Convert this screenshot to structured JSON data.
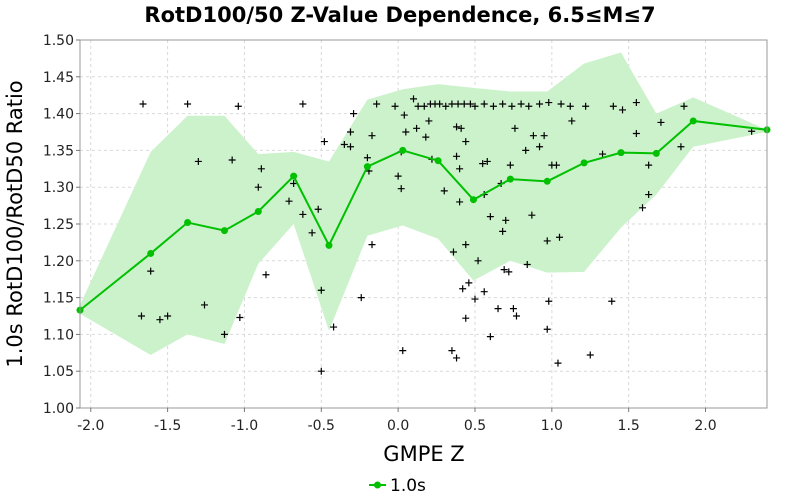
{
  "chart_data": {
    "type": "scatter",
    "title": "RotD100/50 Z-Value Dependence, 6.5≤M≤7",
    "xlabel": "GMPE Z",
    "ylabel": "1.0s RotD100/RotD50 Ratio",
    "xlim": [
      -2.07,
      2.4
    ],
    "ylim": [
      1.0,
      1.5
    ],
    "x_ticks": [
      "-2.0",
      "-1.5",
      "-1.0",
      "-0.5",
      "0.0",
      "0.5",
      "1.0",
      "1.5",
      "2.0"
    ],
    "x_tick_values": [
      -2.0,
      -1.5,
      -1.0,
      -0.5,
      0.0,
      0.5,
      1.0,
      1.5,
      2.0
    ],
    "y_ticks": [
      "1.00",
      "1.05",
      "1.10",
      "1.15",
      "1.20",
      "1.25",
      "1.30",
      "1.35",
      "1.40",
      "1.45",
      "1.50"
    ],
    "y_tick_values": [
      1.0,
      1.05,
      1.1,
      1.15,
      1.2,
      1.25,
      1.3,
      1.35,
      1.4,
      1.45,
      1.5
    ],
    "grid": true,
    "legend": {
      "position": "bottom-center",
      "entries": [
        "1.0s"
      ]
    },
    "colors": {
      "line": "#00c000",
      "band": "#ccf2cc",
      "scatter": "#000000",
      "grid": "#d9d9d9"
    },
    "series": [
      {
        "name": "1.0s",
        "type": "line",
        "x": [
          -2.07,
          -1.61,
          -1.37,
          -1.13,
          -0.91,
          -0.68,
          -0.45,
          -0.2,
          0.03,
          0.26,
          0.49,
          0.73,
          0.97,
          1.21,
          1.45,
          1.68,
          1.92,
          2.4
        ],
        "y": [
          1.133,
          1.21,
          1.252,
          1.241,
          1.267,
          1.315,
          1.221,
          1.328,
          1.35,
          1.336,
          1.283,
          1.311,
          1.308,
          1.333,
          1.347,
          1.346,
          1.39,
          1.378
        ]
      }
    ],
    "band": {
      "x": [
        -2.07,
        -1.61,
        -1.37,
        -1.13,
        -0.91,
        -0.68,
        -0.45,
        -0.2,
        0.03,
        0.26,
        0.49,
        0.73,
        0.97,
        1.21,
        1.45,
        1.68,
        1.92,
        2.4
      ],
      "upper": [
        1.14,
        1.348,
        1.397,
        1.397,
        1.345,
        1.348,
        1.335,
        1.419,
        1.433,
        1.44,
        1.435,
        1.43,
        1.43,
        1.468,
        1.483,
        1.4,
        1.422,
        1.378
      ],
      "lower": [
        1.128,
        1.072,
        1.1,
        1.087,
        1.196,
        1.25,
        1.105,
        1.234,
        1.248,
        1.23,
        1.173,
        1.2,
        1.184,
        1.185,
        1.245,
        1.29,
        1.355,
        1.375
      ]
    },
    "scatter_points": [
      [
        -1.66,
        1.413
      ],
      [
        -1.37,
        1.413
      ],
      [
        -1.04,
        1.41
      ],
      [
        -0.62,
        1.413
      ],
      [
        -1.3,
        1.335
      ],
      [
        -1.08,
        1.337
      ],
      [
        -0.89,
        1.325
      ],
      [
        -0.91,
        1.3
      ],
      [
        -0.71,
        1.281
      ],
      [
        -0.68,
        1.305
      ],
      [
        -0.62,
        1.263
      ],
      [
        -0.52,
        1.27
      ],
      [
        -0.56,
        1.238
      ],
      [
        -1.61,
        1.186
      ],
      [
        -0.86,
        1.181
      ],
      [
        -1.67,
        1.125
      ],
      [
        -1.55,
        1.12
      ],
      [
        -1.5,
        1.125
      ],
      [
        -1.26,
        1.14
      ],
      [
        -1.13,
        1.1
      ],
      [
        -1.03,
        1.123
      ],
      [
        -0.5,
        1.16
      ],
      [
        -0.42,
        1.11
      ],
      [
        -0.5,
        1.05
      ],
      [
        -0.48,
        1.362
      ],
      [
        -0.35,
        1.358
      ],
      [
        -0.31,
        1.355
      ],
      [
        -0.31,
        1.375
      ],
      [
        -0.29,
        1.4
      ],
      [
        -0.2,
        1.34
      ],
      [
        -0.17,
        1.37
      ],
      [
        -0.14,
        1.413
      ],
      [
        -0.19,
        1.322
      ],
      [
        -0.24,
        1.15
      ],
      [
        -0.17,
        1.222
      ],
      [
        -0.02,
        1.41
      ],
      [
        0.04,
        1.398
      ],
      [
        0.1,
        1.42
      ],
      [
        0.13,
        1.41
      ],
      [
        0.17,
        1.41
      ],
      [
        0.21,
        1.413
      ],
      [
        0.24,
        1.413
      ],
      [
        0.27,
        1.413
      ],
      [
        0.31,
        1.41
      ],
      [
        0.35,
        1.413
      ],
      [
        0.39,
        1.413
      ],
      [
        0.43,
        1.413
      ],
      [
        0.47,
        1.413
      ],
      [
        0.5,
        1.41
      ],
      [
        0.56,
        1.413
      ],
      [
        0.62,
        1.41
      ],
      [
        0.68,
        1.413
      ],
      [
        0.74,
        1.41
      ],
      [
        0.8,
        1.413
      ],
      [
        0.85,
        1.41
      ],
      [
        0.92,
        1.413
      ],
      [
        0.98,
        1.415
      ],
      [
        1.06,
        1.413
      ],
      [
        1.12,
        1.41
      ],
      [
        1.22,
        1.41
      ],
      [
        1.4,
        1.41
      ],
      [
        1.46,
        1.405
      ],
      [
        1.55,
        1.415
      ],
      [
        1.86,
        1.41
      ],
      [
        0.05,
        1.375
      ],
      [
        0.12,
        1.38
      ],
      [
        0.18,
        1.368
      ],
      [
        0.2,
        1.39
      ],
      [
        0.38,
        1.382
      ],
      [
        0.41,
        1.38
      ],
      [
        0.44,
        1.362
      ],
      [
        0.38,
        1.342
      ],
      [
        0.22,
        1.338
      ],
      [
        0.02,
        1.348
      ],
      [
        0.4,
        1.325
      ],
      [
        0.55,
        1.332
      ],
      [
        0.58,
        1.335
      ],
      [
        0.67,
        1.305
      ],
      [
        0.73,
        1.33
      ],
      [
        0.76,
        1.38
      ],
      [
        0.83,
        1.35
      ],
      [
        0.88,
        1.37
      ],
      [
        0.92,
        1.355
      ],
      [
        0.95,
        1.37
      ],
      [
        1.13,
        1.39
      ],
      [
        1.33,
        1.345
      ],
      [
        1.55,
        1.373
      ],
      [
        1.63,
        1.33
      ],
      [
        1.71,
        1.388
      ],
      [
        1.84,
        1.355
      ],
      [
        1.0,
        1.33
      ],
      [
        1.03,
        1.33
      ],
      [
        0.3,
        1.295
      ],
      [
        0.56,
        1.29
      ],
      [
        0.6,
        1.26
      ],
      [
        0.7,
        1.255
      ],
      [
        0.68,
        1.24
      ],
      [
        0.87,
        1.262
      ],
      [
        0.0,
        1.315
      ],
      [
        0.02,
        1.298
      ],
      [
        0.4,
        1.28
      ],
      [
        0.36,
        1.212
      ],
      [
        0.44,
        1.222
      ],
      [
        0.52,
        1.2
      ],
      [
        0.69,
        1.188
      ],
      [
        0.72,
        1.185
      ],
      [
        0.84,
        1.195
      ],
      [
        1.05,
        1.232
      ],
      [
        0.97,
        1.227
      ],
      [
        1.59,
        1.272
      ],
      [
        1.63,
        1.29
      ],
      [
        0.42,
        1.162
      ],
      [
        0.46,
        1.17
      ],
      [
        0.5,
        1.148
      ],
      [
        0.56,
        1.158
      ],
      [
        0.65,
        1.135
      ],
      [
        0.75,
        1.135
      ],
      [
        0.77,
        1.125
      ],
      [
        0.98,
        1.145
      ],
      [
        0.44,
        1.122
      ],
      [
        0.35,
        1.078
      ],
      [
        0.38,
        1.068
      ],
      [
        0.03,
        1.078
      ],
      [
        0.6,
        1.097
      ],
      [
        0.97,
        1.107
      ],
      [
        1.04,
        1.061
      ],
      [
        1.25,
        1.072
      ],
      [
        1.39,
        1.145
      ],
      [
        2.3,
        1.376
      ]
    ]
  }
}
